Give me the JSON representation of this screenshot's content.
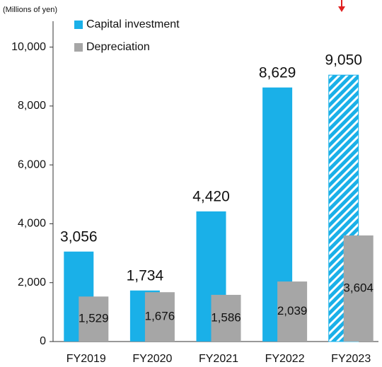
{
  "chart_data": {
    "type": "bar",
    "y_label": "(Millions of yen)",
    "categories": [
      "FY2019",
      "FY2020",
      "FY2021",
      "FY2022",
      "FY2023"
    ],
    "series": [
      {
        "name": "Capital investment",
        "color": "#1ab0e8",
        "values": [
          3056,
          1734,
          4420,
          8629,
          9050
        ],
        "value_labels": [
          "3,056",
          "1,734",
          "4,420",
          "8,629",
          "9,050"
        ],
        "hatch": [
          false,
          false,
          false,
          false,
          true
        ]
      },
      {
        "name": "Depreciation",
        "color": "#a6a6a6",
        "values": [
          1529,
          1676,
          1586,
          2039,
          3604
        ],
        "value_labels": [
          "1,529",
          "1,676",
          "1,586",
          "2,039",
          "3,604"
        ]
      }
    ],
    "ylim": [
      0,
      11000
    ],
    "yticks": [
      0,
      {
        "value": 2000,
        "label": "2,000"
      },
      {
        "value": 4000,
        "label": "4,000"
      },
      {
        "value": 6000,
        "label": "6,000"
      },
      {
        "value": 8000,
        "label": "8,000"
      },
      {
        "value": 10000,
        "label": "10,000"
      }
    ],
    "grid": false
  }
}
